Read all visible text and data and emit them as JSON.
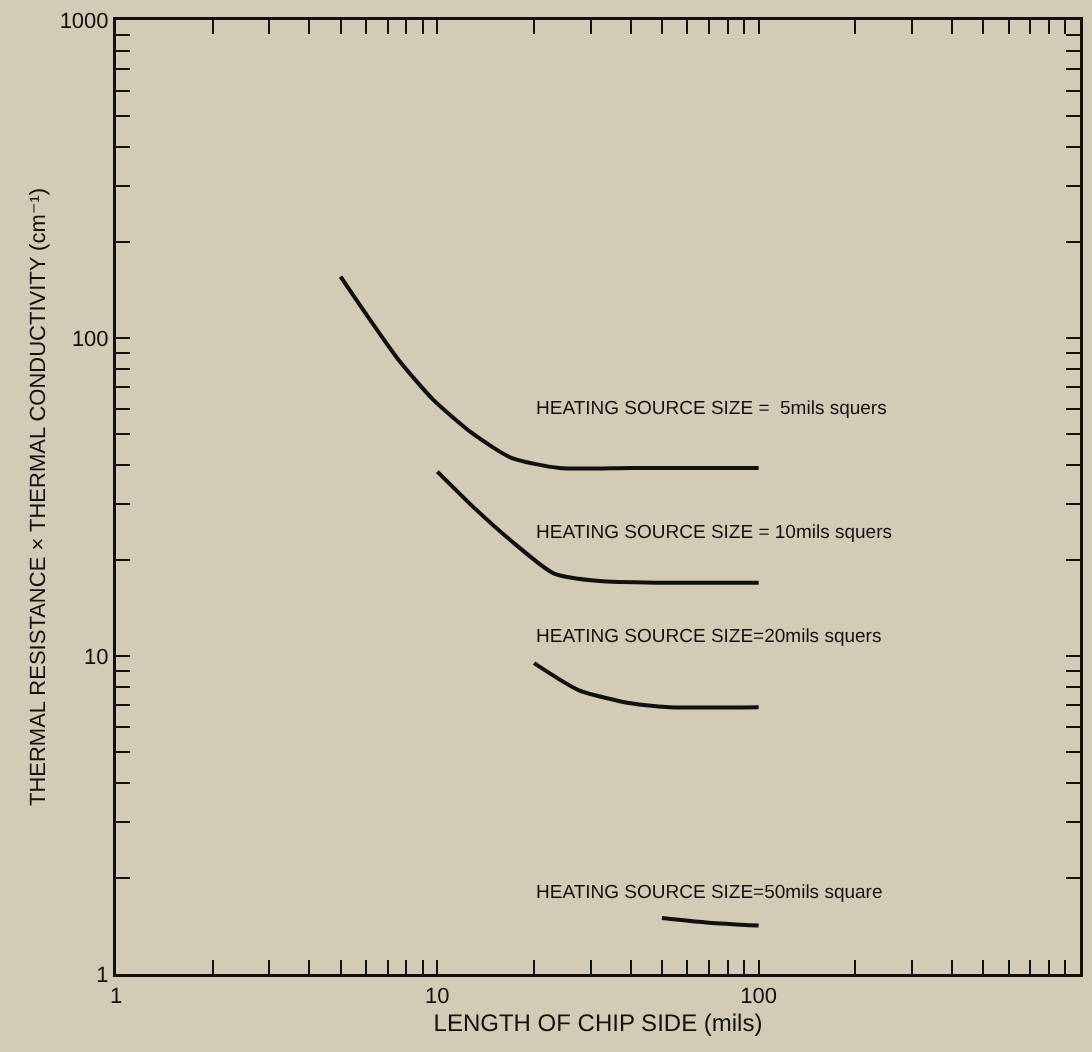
{
  "chart_data": {
    "type": "line",
    "xlabel": "LENGTH OF CHIP SIDE (mils)",
    "ylabel": "THERMAL RESISTANCE × THERMAL CONDUCTIVITY (cm⁻¹)",
    "log": "xy",
    "grid": false,
    "legend": false,
    "marker": "none",
    "line_style": "solid",
    "xlim": [
      1,
      1000
    ],
    "ylim": [
      1,
      1000
    ],
    "xticks": [
      1,
      {
        "value": 2,
        "label": null
      },
      {
        "value": 3,
        "label": null
      },
      {
        "value": 4,
        "label": null
      },
      {
        "value": 5,
        "label": null
      },
      {
        "value": 6,
        "label": null
      },
      {
        "value": 7,
        "label": null
      },
      {
        "value": 8,
        "label": null
      },
      {
        "value": 9,
        "label": null
      },
      10,
      {
        "value": 20,
        "label": null
      },
      {
        "value": 30,
        "label": null
      },
      {
        "value": 40,
        "label": null
      },
      {
        "value": 50,
        "label": null
      },
      {
        "value": 60,
        "label": null
      },
      {
        "value": 70,
        "label": null
      },
      {
        "value": 80,
        "label": null
      },
      {
        "value": 90,
        "label": null
      },
      100,
      {
        "value": 200,
        "label": null
      },
      {
        "value": 300,
        "label": null
      },
      {
        "value": 400,
        "label": null
      },
      {
        "value": 500,
        "label": null
      },
      {
        "value": 600,
        "label": null
      },
      {
        "value": 700,
        "label": null
      },
      {
        "value": 800,
        "label": null
      },
      {
        "value": 900,
        "label": null
      },
      {
        "value": 1000,
        "label": null
      }
    ],
    "yticks": [
      1,
      {
        "value": 2,
        "label": null
      },
      {
        "value": 3,
        "label": null
      },
      {
        "value": 4,
        "label": null
      },
      {
        "value": 5,
        "label": null
      },
      {
        "value": 6,
        "label": null
      },
      {
        "value": 7,
        "label": null
      },
      {
        "value": 8,
        "label": null
      },
      {
        "value": 9,
        "label": null
      },
      10,
      {
        "value": 20,
        "label": null
      },
      {
        "value": 30,
        "label": null
      },
      {
        "value": 40,
        "label": null
      },
      {
        "value": 50,
        "label": null
      },
      {
        "value": 60,
        "label": null
      },
      {
        "value": 70,
        "label": null
      },
      {
        "value": 80,
        "label": null
      },
      {
        "value": 90,
        "label": null
      },
      100,
      {
        "value": 200,
        "label": null
      },
      {
        "value": 300,
        "label": null
      },
      {
        "value": 400,
        "label": null
      },
      {
        "value": 500,
        "label": null
      },
      {
        "value": 600,
        "label": null
      },
      {
        "value": 700,
        "label": null
      },
      {
        "value": 800,
        "label": null
      },
      {
        "value": 900,
        "label": null
      },
      1000
    ],
    "series": [
      {
        "name": "HEATING SOURCE SIZE =  5mils squers",
        "color": "#111111",
        "x": [
          5,
          6,
          7.6,
          9.7,
          12.9,
          17,
          24,
          40,
          100
        ],
        "values": [
          156,
          119,
          85,
          64,
          50,
          42,
          39,
          39,
          39
        ]
      },
      {
        "name": "HEATING SOURCE SIZE = 10mils squers",
        "color": "#111111",
        "x": [
          10,
          12.9,
          17,
          23,
          32,
          50,
          100
        ],
        "values": [
          38,
          29.5,
          23,
          18.2,
          17.2,
          17,
          17
        ]
      },
      {
        "name": "HEATING SOURCE SIZE=20mils squers",
        "color": "#111111",
        "x": [
          20,
          27.6,
          40,
          53,
          100
        ],
        "values": [
          9.5,
          7.8,
          7.1,
          6.9,
          6.9
        ]
      },
      {
        "name": "HEATING SOURCE SIZE=50mils square",
        "color": "#111111",
        "x": [
          50,
          70,
          100
        ],
        "values": [
          1.5,
          1.45,
          1.42
        ]
      }
    ]
  }
}
